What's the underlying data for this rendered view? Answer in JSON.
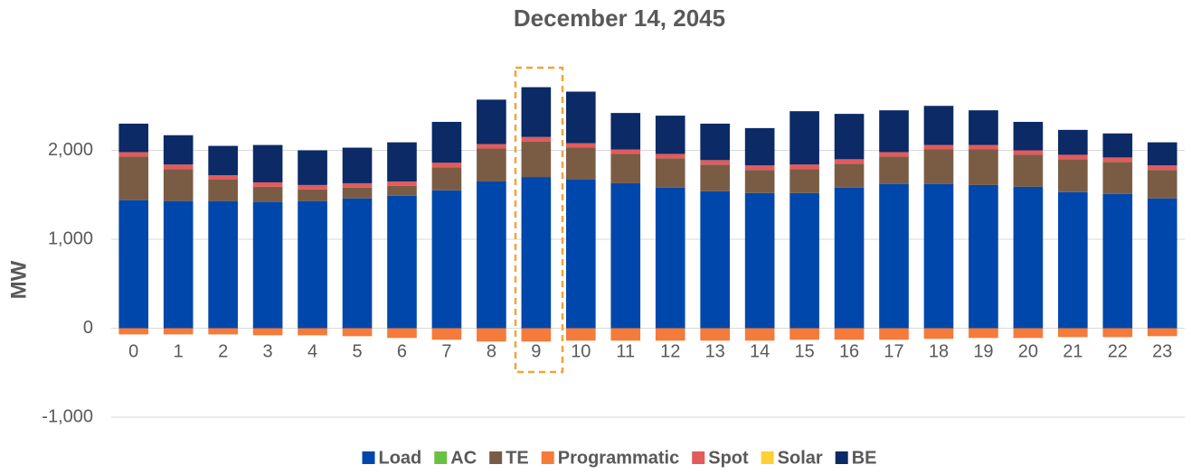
{
  "chart_data": {
    "type": "stacked_bar",
    "title": "December 14, 2045",
    "y_label": "MW",
    "categories": [
      "0",
      "1",
      "2",
      "3",
      "4",
      "5",
      "6",
      "7",
      "8",
      "9",
      "10",
      "11",
      "12",
      "13",
      "14",
      "15",
      "16",
      "17",
      "18",
      "19",
      "20",
      "21",
      "22",
      "23"
    ],
    "series": [
      {
        "name": "Load",
        "color": "#0047ab",
        "values": [
          1440,
          1430,
          1430,
          1420,
          1430,
          1460,
          1490,
          1550,
          1650,
          1700,
          1670,
          1630,
          1580,
          1540,
          1520,
          1520,
          1580,
          1620,
          1620,
          1610,
          1590,
          1530,
          1510,
          1460
        ]
      },
      {
        "name": "AC",
        "color": "#6abf45",
        "values": [
          0,
          0,
          0,
          0,
          0,
          0,
          0,
          0,
          0,
          0,
          0,
          0,
          0,
          0,
          0,
          0,
          0,
          0,
          0,
          0,
          0,
          0,
          0,
          0
        ]
      },
      {
        "name": "TE",
        "color": "#7a5c45",
        "values": [
          490,
          360,
          240,
          170,
          130,
          120,
          110,
          260,
          370,
          400,
          360,
          330,
          330,
          300,
          260,
          270,
          270,
          310,
          390,
          400,
          360,
          370,
          360,
          320
        ]
      },
      {
        "name": "Programmatic",
        "color": "#f47b3a",
        "values": [
          -70,
          -70,
          -70,
          -80,
          -80,
          -90,
          -110,
          -130,
          -150,
          -150,
          -140,
          -140,
          -140,
          -140,
          -140,
          -130,
          -130,
          -130,
          -120,
          -110,
          -110,
          -100,
          -100,
          -90
        ]
      },
      {
        "name": "Spot",
        "color": "#e35b5b",
        "values": [
          50,
          50,
          50,
          50,
          50,
          50,
          50,
          50,
          50,
          50,
          50,
          50,
          50,
          50,
          50,
          50,
          50,
          50,
          50,
          50,
          50,
          50,
          50,
          50
        ]
      },
      {
        "name": "Solar",
        "color": "#ffd033",
        "values": [
          0,
          0,
          0,
          0,
          0,
          0,
          0,
          0,
          0,
          0,
          0,
          0,
          0,
          0,
          0,
          0,
          0,
          0,
          0,
          0,
          0,
          0,
          0,
          0
        ]
      },
      {
        "name": "BE",
        "color": "#0b2a66",
        "values": [
          320,
          330,
          330,
          420,
          390,
          400,
          440,
          460,
          500,
          560,
          580,
          410,
          430,
          410,
          420,
          600,
          510,
          470,
          440,
          390,
          320,
          280,
          270,
          260
        ]
      }
    ],
    "ylim": [
      -1000,
      3000
    ],
    "yticks": [
      {
        "value": -1000,
        "label": "-1,000"
      },
      0,
      {
        "value": 1000,
        "label": "1,000"
      },
      {
        "value": 2000,
        "label": "2,000"
      }
    ],
    "grid": true
  }
}
